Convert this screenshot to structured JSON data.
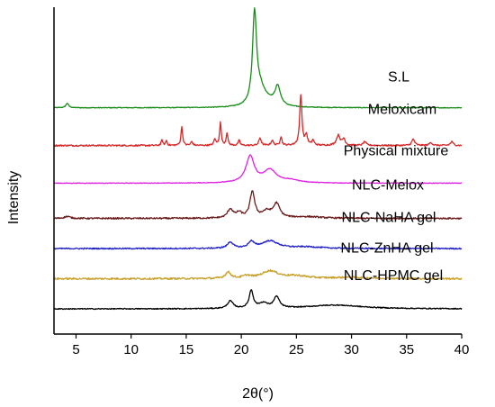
{
  "chart_data": {
    "type": "line",
    "title": "",
    "xlabel": "2θ(°)",
    "ylabel": "Intensity",
    "xlim": [
      3,
      40
    ],
    "xticks": [
      5,
      10,
      15,
      20,
      25,
      30,
      35,
      40
    ],
    "yticks_shown": false,
    "layout": "stacked-offset",
    "series": [
      {
        "name": "S.L",
        "color": "#1a8c1a",
        "baseline": 9.0,
        "noise": 0.015,
        "peaks": [
          [
            4.2,
            0.18,
            0.15
          ],
          [
            21.2,
            3.6,
            0.22
          ],
          [
            21.7,
            0.6,
            0.5
          ],
          [
            23.3,
            0.75,
            0.3
          ],
          [
            22.4,
            0.2,
            0.8
          ]
        ]
      },
      {
        "name": "Meloxicam",
        "color": "#d62728",
        "baseline": 7.5,
        "noise": 0.03,
        "peaks": [
          [
            12.8,
            0.22,
            0.08
          ],
          [
            13.2,
            0.2,
            0.08
          ],
          [
            14.6,
            0.75,
            0.09
          ],
          [
            15.5,
            0.15,
            0.1
          ],
          [
            17.6,
            0.25,
            0.1
          ],
          [
            18.1,
            0.9,
            0.09
          ],
          [
            18.7,
            0.5,
            0.09
          ],
          [
            19.8,
            0.2,
            0.1
          ],
          [
            21.7,
            0.3,
            0.12
          ],
          [
            22.8,
            0.2,
            0.12
          ],
          [
            23.6,
            0.35,
            0.1
          ],
          [
            25.4,
            2.0,
            0.12
          ],
          [
            25.9,
            0.4,
            0.12
          ],
          [
            26.5,
            0.2,
            0.12
          ],
          [
            28.8,
            0.4,
            0.2
          ],
          [
            29.3,
            0.25,
            0.15
          ],
          [
            31.2,
            0.15,
            0.15
          ],
          [
            35.6,
            0.25,
            0.15
          ],
          [
            37.2,
            0.12,
            0.15
          ],
          [
            39.1,
            0.15,
            0.15
          ]
        ]
      },
      {
        "name": "Physical mixture",
        "color": "#e020e0",
        "baseline": 6.0,
        "noise": 0.012,
        "peaks": [
          [
            20.8,
            1.05,
            0.45
          ],
          [
            22.6,
            0.5,
            0.7
          ],
          [
            24.5,
            0.1,
            1.0
          ]
        ]
      },
      {
        "name": "NLC-Melox",
        "color": "#6b1a1a",
        "baseline": 4.6,
        "noise": 0.03,
        "peaks": [
          [
            4.2,
            0.08,
            0.3
          ],
          [
            19.0,
            0.35,
            0.3
          ],
          [
            19.8,
            0.2,
            0.3
          ],
          [
            21.0,
            1.05,
            0.25
          ],
          [
            22.3,
            0.25,
            0.5
          ],
          [
            23.2,
            0.55,
            0.35
          ],
          [
            26.0,
            0.06,
            1.5
          ]
        ]
      },
      {
        "name": "NLC-NaHA gel",
        "color": "#2020c8",
        "baseline": 3.4,
        "noise": 0.025,
        "peaks": [
          [
            19.0,
            0.25,
            0.3
          ],
          [
            20.9,
            0.25,
            0.3
          ],
          [
            22.6,
            0.3,
            0.9
          ],
          [
            26.0,
            0.06,
            1.5
          ]
        ]
      },
      {
        "name": "NLC-ZnHA gel",
        "color": "#c8a02a",
        "baseline": 2.2,
        "noise": 0.035,
        "peaks": [
          [
            18.8,
            0.25,
            0.3
          ],
          [
            20.5,
            0.1,
            0.4
          ],
          [
            22.6,
            0.3,
            0.9
          ],
          [
            25.0,
            0.1,
            1.2
          ],
          [
            30.0,
            0.05,
            2.0
          ]
        ]
      },
      {
        "name": "NLC-HPMC gel",
        "color": "#000000",
        "baseline": 1.0,
        "noise": 0.02,
        "peaks": [
          [
            19.0,
            0.3,
            0.3
          ],
          [
            20.9,
            0.7,
            0.22
          ],
          [
            22.0,
            0.2,
            0.5
          ],
          [
            23.2,
            0.45,
            0.3
          ],
          [
            28.5,
            0.15,
            3.0
          ]
        ]
      }
    ]
  }
}
